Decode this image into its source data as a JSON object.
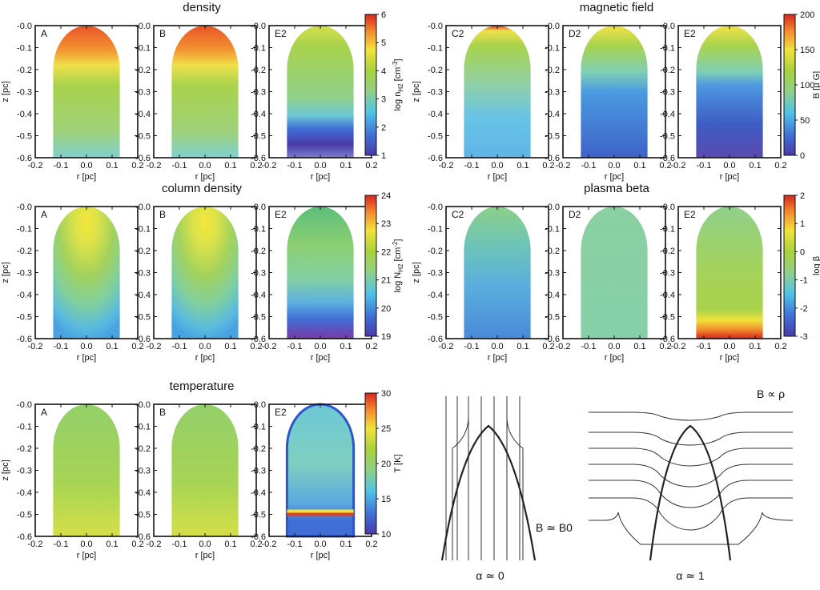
{
  "chart_data": {
    "type": "heatmap",
    "common_axes": {
      "xlabel": "r [pc]",
      "ylabel": "z [pc]",
      "xlim": [
        -0.2,
        0.2
      ],
      "ylim": [
        -0.6,
        0.0
      ],
      "xticks": [
        "-0.2",
        "-0.1",
        "0.0",
        "0.1",
        "0.2"
      ],
      "yticks": [
        "-0.0",
        "-0.1",
        "-0.2",
        "-0.3",
        "-0.4",
        "-0.5",
        "-0.6"
      ]
    },
    "groups": [
      {
        "id": "density",
        "title": "density",
        "panels": [
          "A",
          "B",
          "E2"
        ],
        "colorbar": {
          "label": "log n_H2 [cm^-3]",
          "label_base": "log n",
          "label_sub": "H2",
          "label_unit": " [cm",
          "label_sup": "-3",
          "label_end": "]",
          "min": 1,
          "max": 6,
          "ticks": [
            "1",
            "2",
            "3",
            "4",
            "5",
            "6"
          ]
        }
      },
      {
        "id": "magnetic",
        "title": "magnetic field",
        "panels": [
          "C2",
          "D2",
          "E2"
        ],
        "colorbar": {
          "label": "B [μ G]",
          "min": 0,
          "max": 200,
          "ticks": [
            "0",
            "50",
            "100",
            "150",
            "200"
          ]
        }
      },
      {
        "id": "column",
        "title": "column density",
        "panels": [
          "A",
          "B",
          "E2"
        ],
        "colorbar": {
          "label": "log N_H2 [cm^-2]",
          "label_base": "log N",
          "label_sub": "H2",
          "label_unit": " [cm",
          "label_sup": "-2",
          "label_end": "]",
          "min": 19,
          "max": 24,
          "ticks": [
            "19",
            "20",
            "21",
            "22",
            "23",
            "24"
          ]
        }
      },
      {
        "id": "beta",
        "title": "plasma beta",
        "panels": [
          "C2",
          "D2",
          "E2"
        ],
        "colorbar": {
          "label": "log β",
          "min": -3,
          "max": 2,
          "ticks": [
            "-3",
            "-2",
            "-1",
            "0",
            "1",
            "2"
          ]
        }
      },
      {
        "id": "temperature",
        "title": "temperature",
        "panels": [
          "A",
          "B",
          "E2"
        ],
        "colorbar": {
          "label": "T [K]",
          "min": 10,
          "max": 30,
          "ticks": [
            "10",
            "15",
            "20",
            "25",
            "30"
          ]
        }
      }
    ],
    "sketches": [
      {
        "id": "alpha0",
        "caption": "α ≃ 0",
        "annotation": "B ≃ B0"
      },
      {
        "id": "alpha1",
        "caption": "α ≃ 1",
        "annotation": "B ∝ ρ"
      }
    ]
  }
}
